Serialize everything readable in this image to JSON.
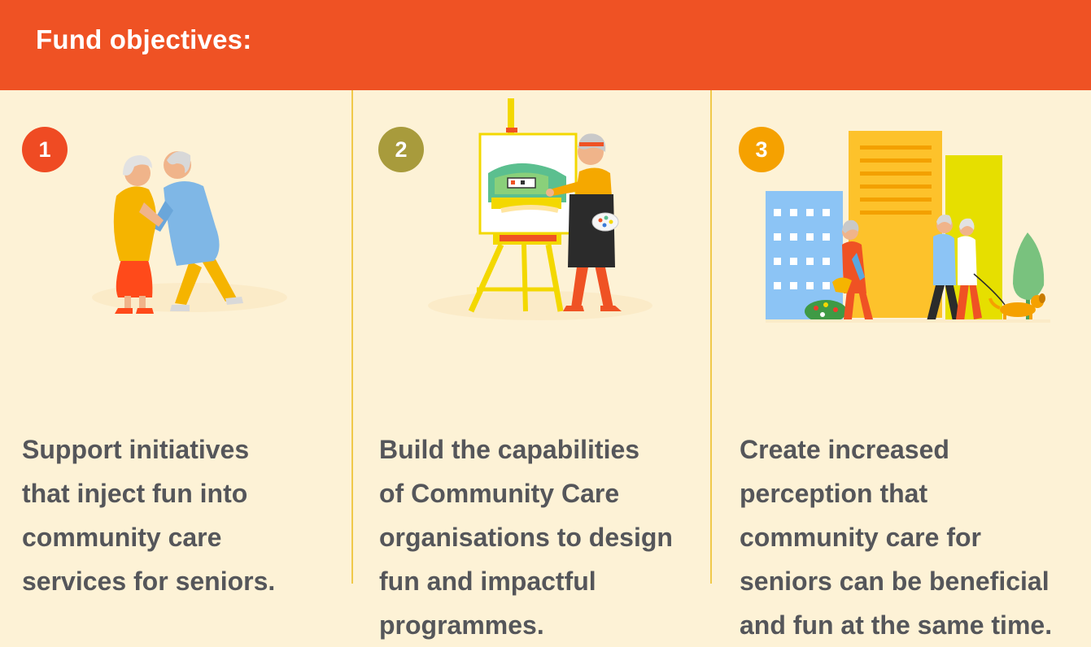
{
  "header": {
    "title": "Fund objectives:"
  },
  "colors": {
    "banner": "#ef5224",
    "background": "#fdf2d6",
    "divider": "#f0c94a",
    "text": "#55565a",
    "badge_1": "#ef4b23",
    "badge_2": "#a89b3c",
    "badge_3": "#f5a100"
  },
  "objectives": [
    {
      "number": "1",
      "illustration": "dancing-seniors-illustration",
      "lines": [
        "Support initiatives",
        "that inject fun into",
        "community care",
        "services for seniors."
      ]
    },
    {
      "number": "2",
      "illustration": "painting-senior-illustration",
      "lines": [
        "Build the capabilities",
        "of Community Care",
        "organisations to design",
        "fun and impactful",
        "programmes."
      ]
    },
    {
      "number": "3",
      "illustration": "city-community-illustration",
      "lines": [
        "Create increased",
        "perception that",
        "community care for",
        "seniors can be beneficial",
        "and fun at the same time."
      ]
    }
  ]
}
